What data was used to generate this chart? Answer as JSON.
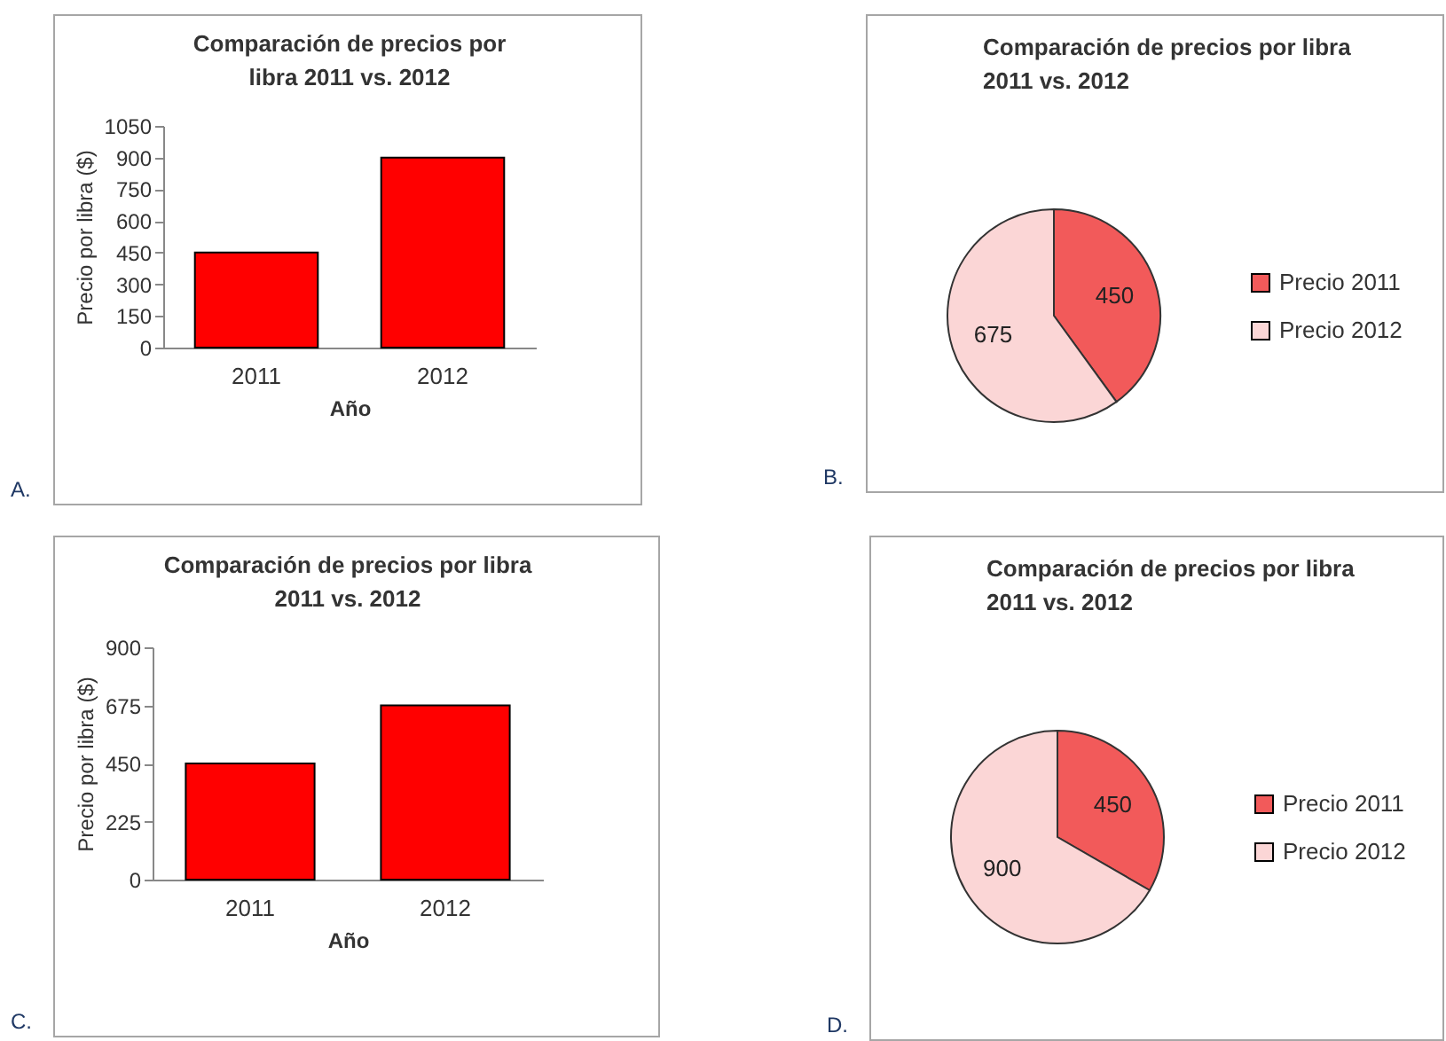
{
  "chart_data": [
    {
      "type": "bar",
      "title": "Comparación de precios por libra 2011 vs. 2012",
      "xlabel": "Año",
      "ylabel": "Precio por libra ($)",
      "categories": [
        "2011",
        "2012"
      ],
      "values": [
        450,
        900
      ],
      "color": "#ff0000",
      "ylim": [
        0,
        1050
      ],
      "yticks": [
        0,
        150,
        300,
        450,
        600,
        750,
        900,
        1050
      ],
      "annotations": [
        "A."
      ]
    },
    {
      "type": "pie",
      "title": "Comparación de precios por libra 2011 vs. 2012",
      "categories": [
        "Precio 2011",
        "Precio 2012"
      ],
      "values": [
        450,
        675
      ],
      "colors": [
        "#f25a5a",
        "#fbd6d6"
      ],
      "data_labels": true,
      "legend": "right",
      "annotations": [
        "B."
      ]
    },
    {
      "type": "bar",
      "title": "Comparación de precios por libra 2011 vs. 2012",
      "xlabel": "Año",
      "ylabel": "Precio por libra ($)",
      "categories": [
        "2011",
        "2012"
      ],
      "values": [
        450,
        675
      ],
      "color": "#ff0000",
      "ylim": [
        0,
        900
      ],
      "yticks": [
        0,
        225,
        450,
        675,
        900
      ],
      "annotations": [
        "C."
      ]
    },
    {
      "type": "pie",
      "title": "Comparación de precios por libra 2011 vs. 2012",
      "categories": [
        "Precio 2011",
        "Precio 2012"
      ],
      "values": [
        450,
        900
      ],
      "colors": [
        "#f25a5a",
        "#fbd6d6"
      ],
      "data_labels": true,
      "legend": "right",
      "annotations": [
        "D."
      ]
    }
  ]
}
